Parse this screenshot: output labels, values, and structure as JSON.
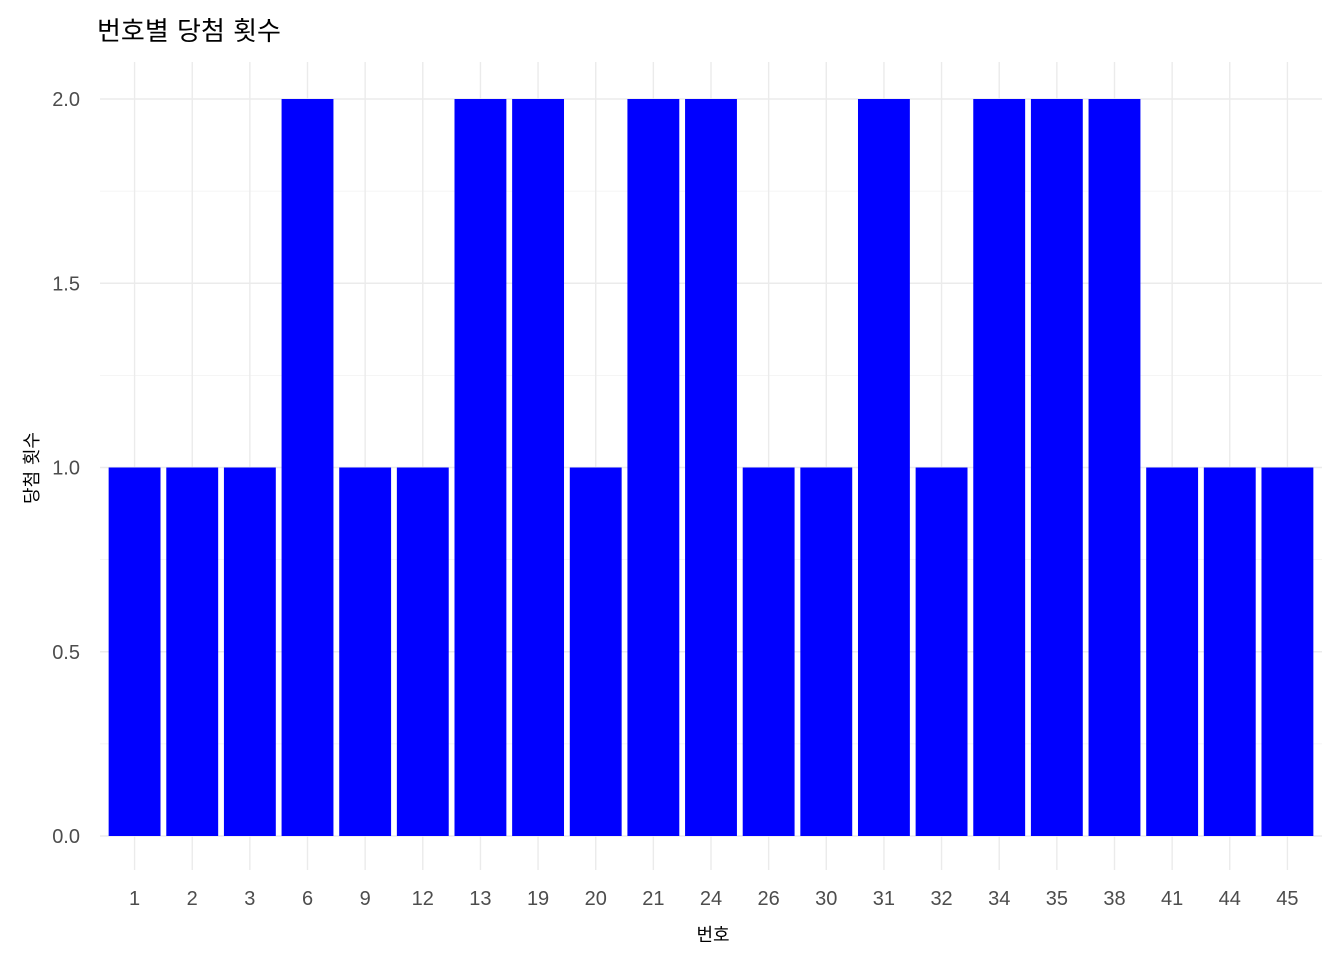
{
  "chart_data": {
    "type": "bar",
    "title": "번호별 당첨 횟수",
    "xlabel": "번호",
    "ylabel": "당첨 횟수",
    "categories": [
      "1",
      "2",
      "3",
      "6",
      "9",
      "12",
      "13",
      "19",
      "20",
      "21",
      "24",
      "26",
      "30",
      "31",
      "32",
      "34",
      "35",
      "38",
      "41",
      "44",
      "45"
    ],
    "values": [
      1,
      1,
      1,
      2,
      1,
      1,
      2,
      2,
      1,
      2,
      2,
      1,
      1,
      2,
      1,
      2,
      2,
      2,
      1,
      1,
      1
    ],
    "ylim": [
      0,
      2
    ],
    "yticks": [
      "0.0",
      "0.5",
      "1.0",
      "1.5",
      "2.0"
    ],
    "bar_color": "#0000FF",
    "grid": true,
    "legend": "none"
  }
}
